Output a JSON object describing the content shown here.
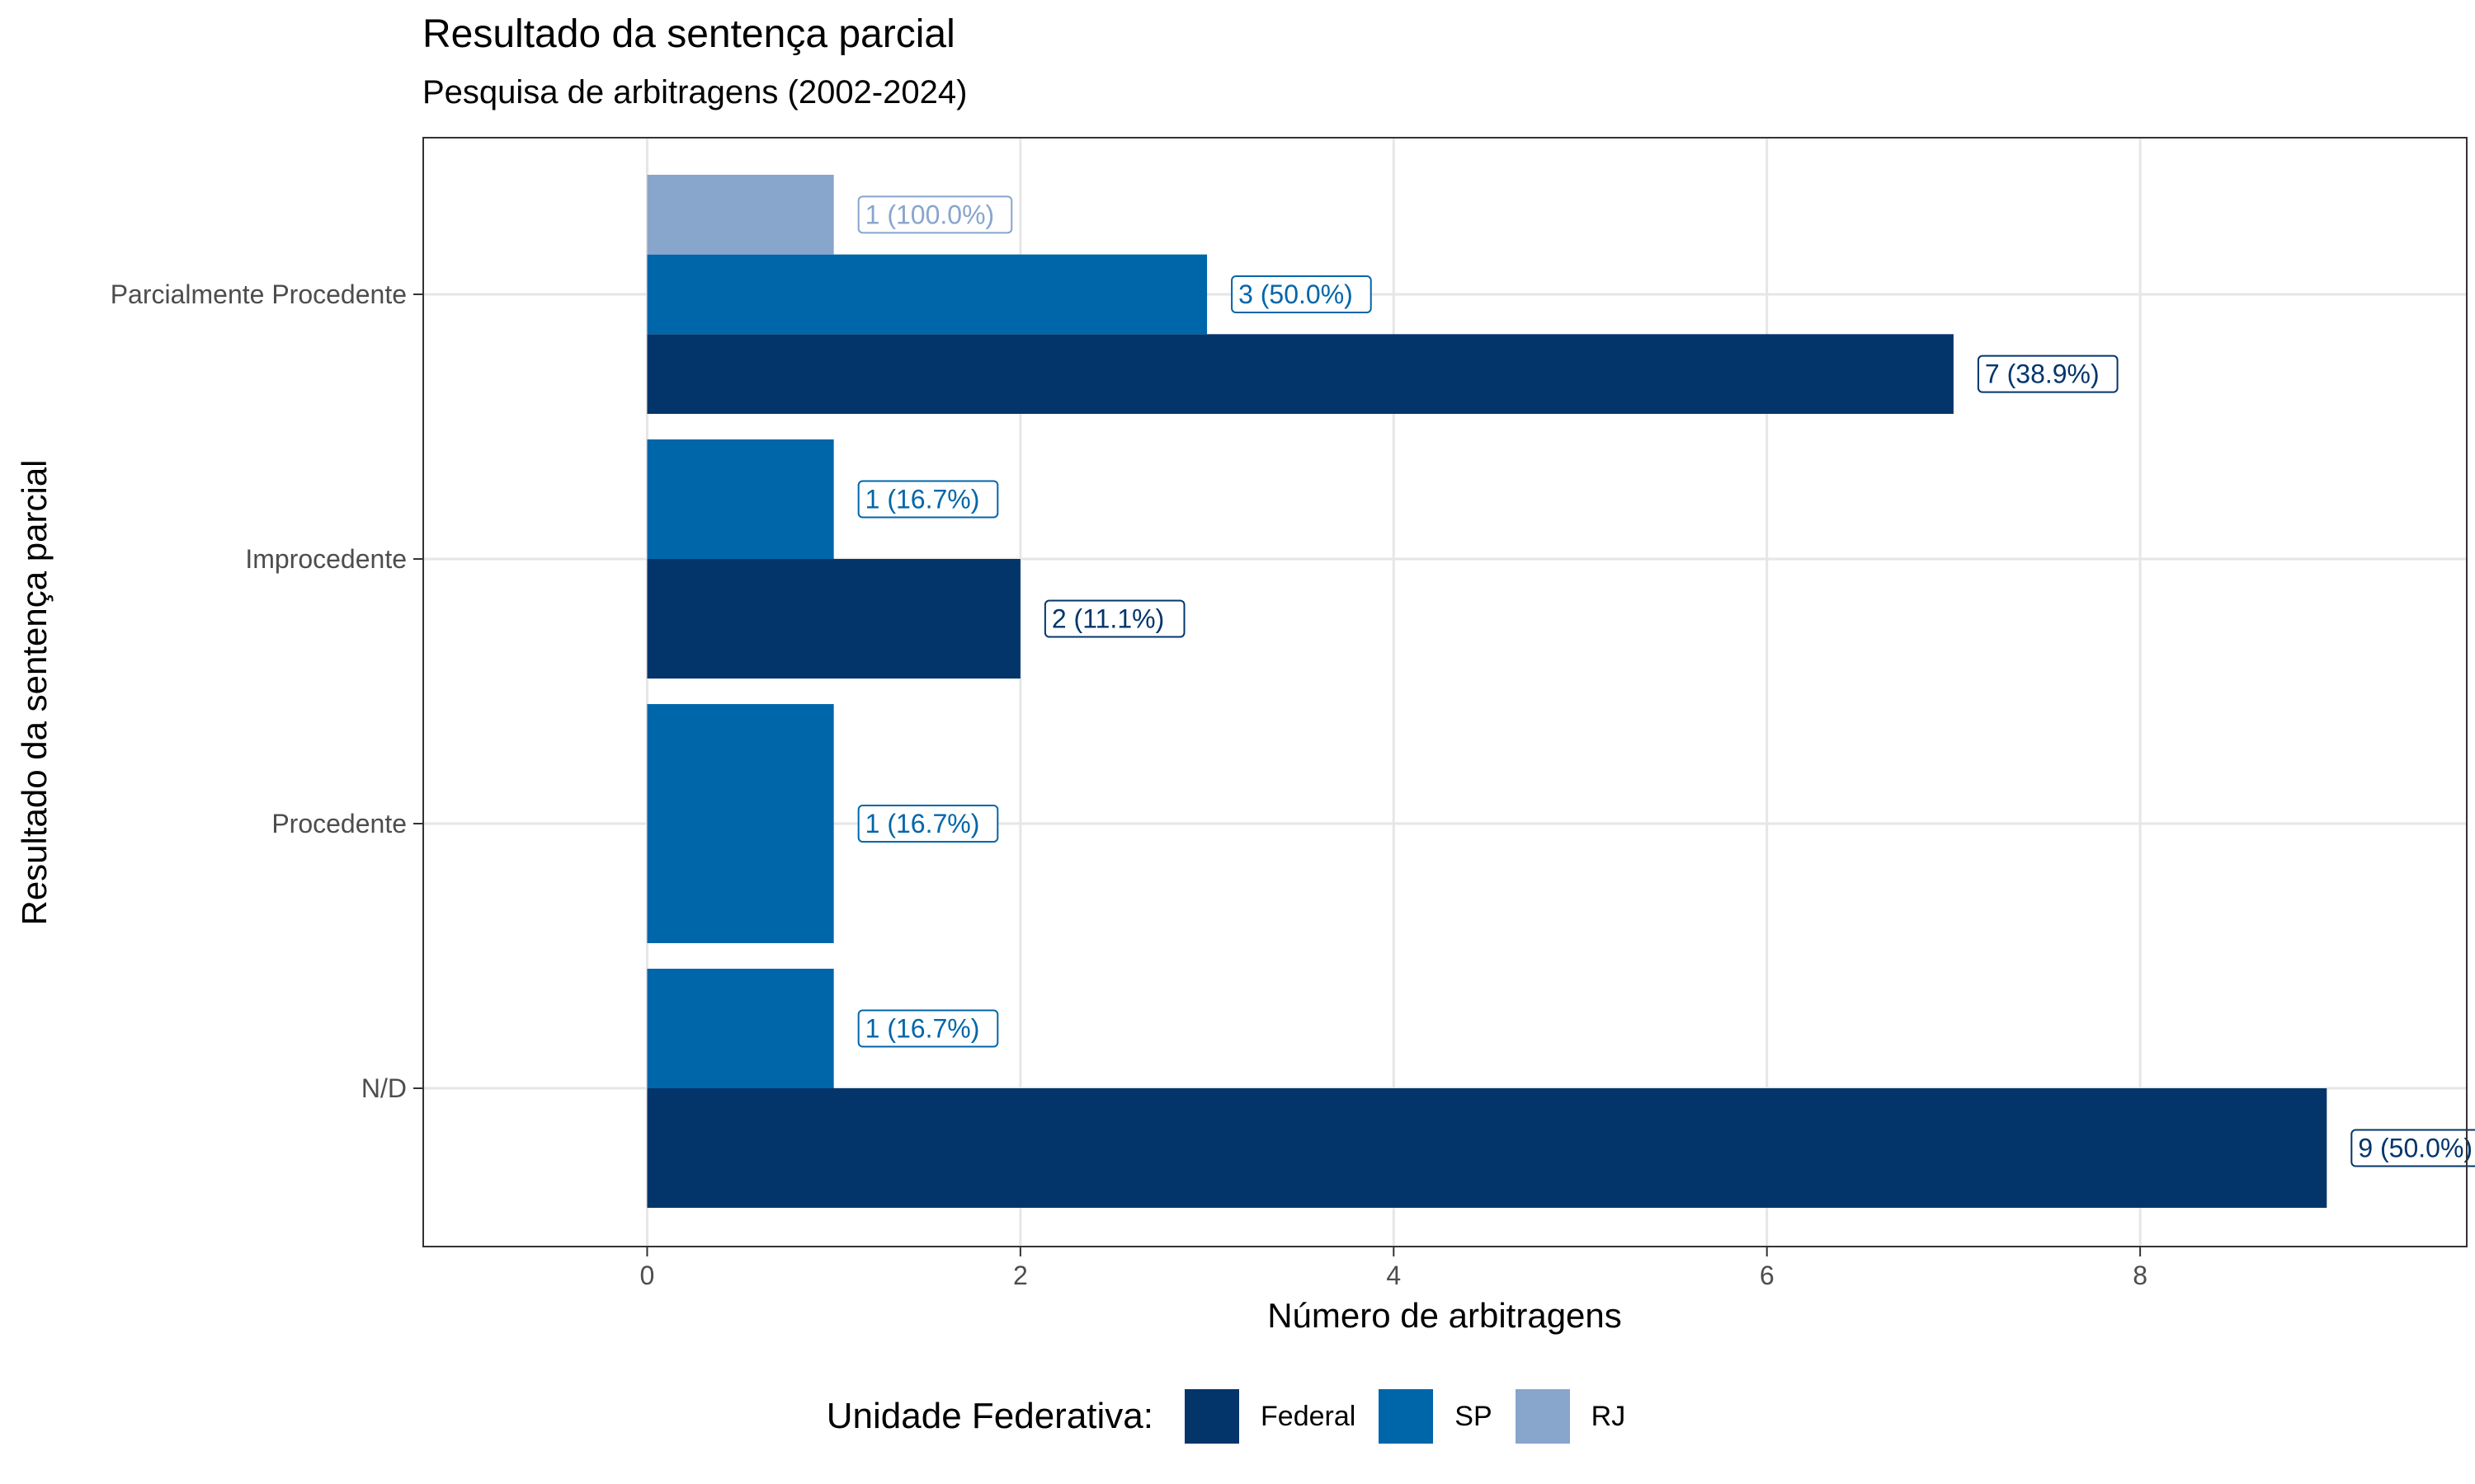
{
  "title": "Resultado da sentença parcial",
  "subtitle": "Pesquisa de arbitragens (2002-2024)",
  "legend": {
    "title": "Unidade Federativa:",
    "items": [
      {
        "label": "Federal",
        "color": "#03356B"
      },
      {
        "label": "SP",
        "color": "#0066AA"
      },
      {
        "label": "RJ",
        "color": "#88A5CC"
      }
    ]
  },
  "chart_data": {
    "type": "bar",
    "orientation": "horizontal",
    "xlabel": "Número de arbitragens",
    "ylabel": "Resultado da sentença parcial",
    "xlim": [
      -1.2,
      9.75
    ],
    "x_ticks": [
      0,
      2,
      4,
      6,
      8
    ],
    "grid": true,
    "legend_position": "bottom",
    "categories": [
      "Parcialmente Procedente",
      "Improcedente",
      "Procedente",
      "N/D"
    ],
    "series": [
      {
        "name": "Federal",
        "color": "#03356B",
        "values": [
          7,
          2,
          null,
          9
        ],
        "labels": [
          "7 (38.9%)",
          "2 (11.1%)",
          null,
          "9 (50.0%)"
        ]
      },
      {
        "name": "SP",
        "color": "#0066AA",
        "values": [
          3,
          1,
          1,
          1
        ],
        "labels": [
          "3 (50.0%)",
          "1 (16.7%)",
          "1 (16.7%)",
          "1 (16.7%)"
        ]
      },
      {
        "name": "RJ",
        "color": "#88A5CC",
        "values": [
          1,
          null,
          null,
          null
        ],
        "labels": [
          "1 (100.0%)",
          null,
          null,
          null
        ]
      }
    ]
  }
}
